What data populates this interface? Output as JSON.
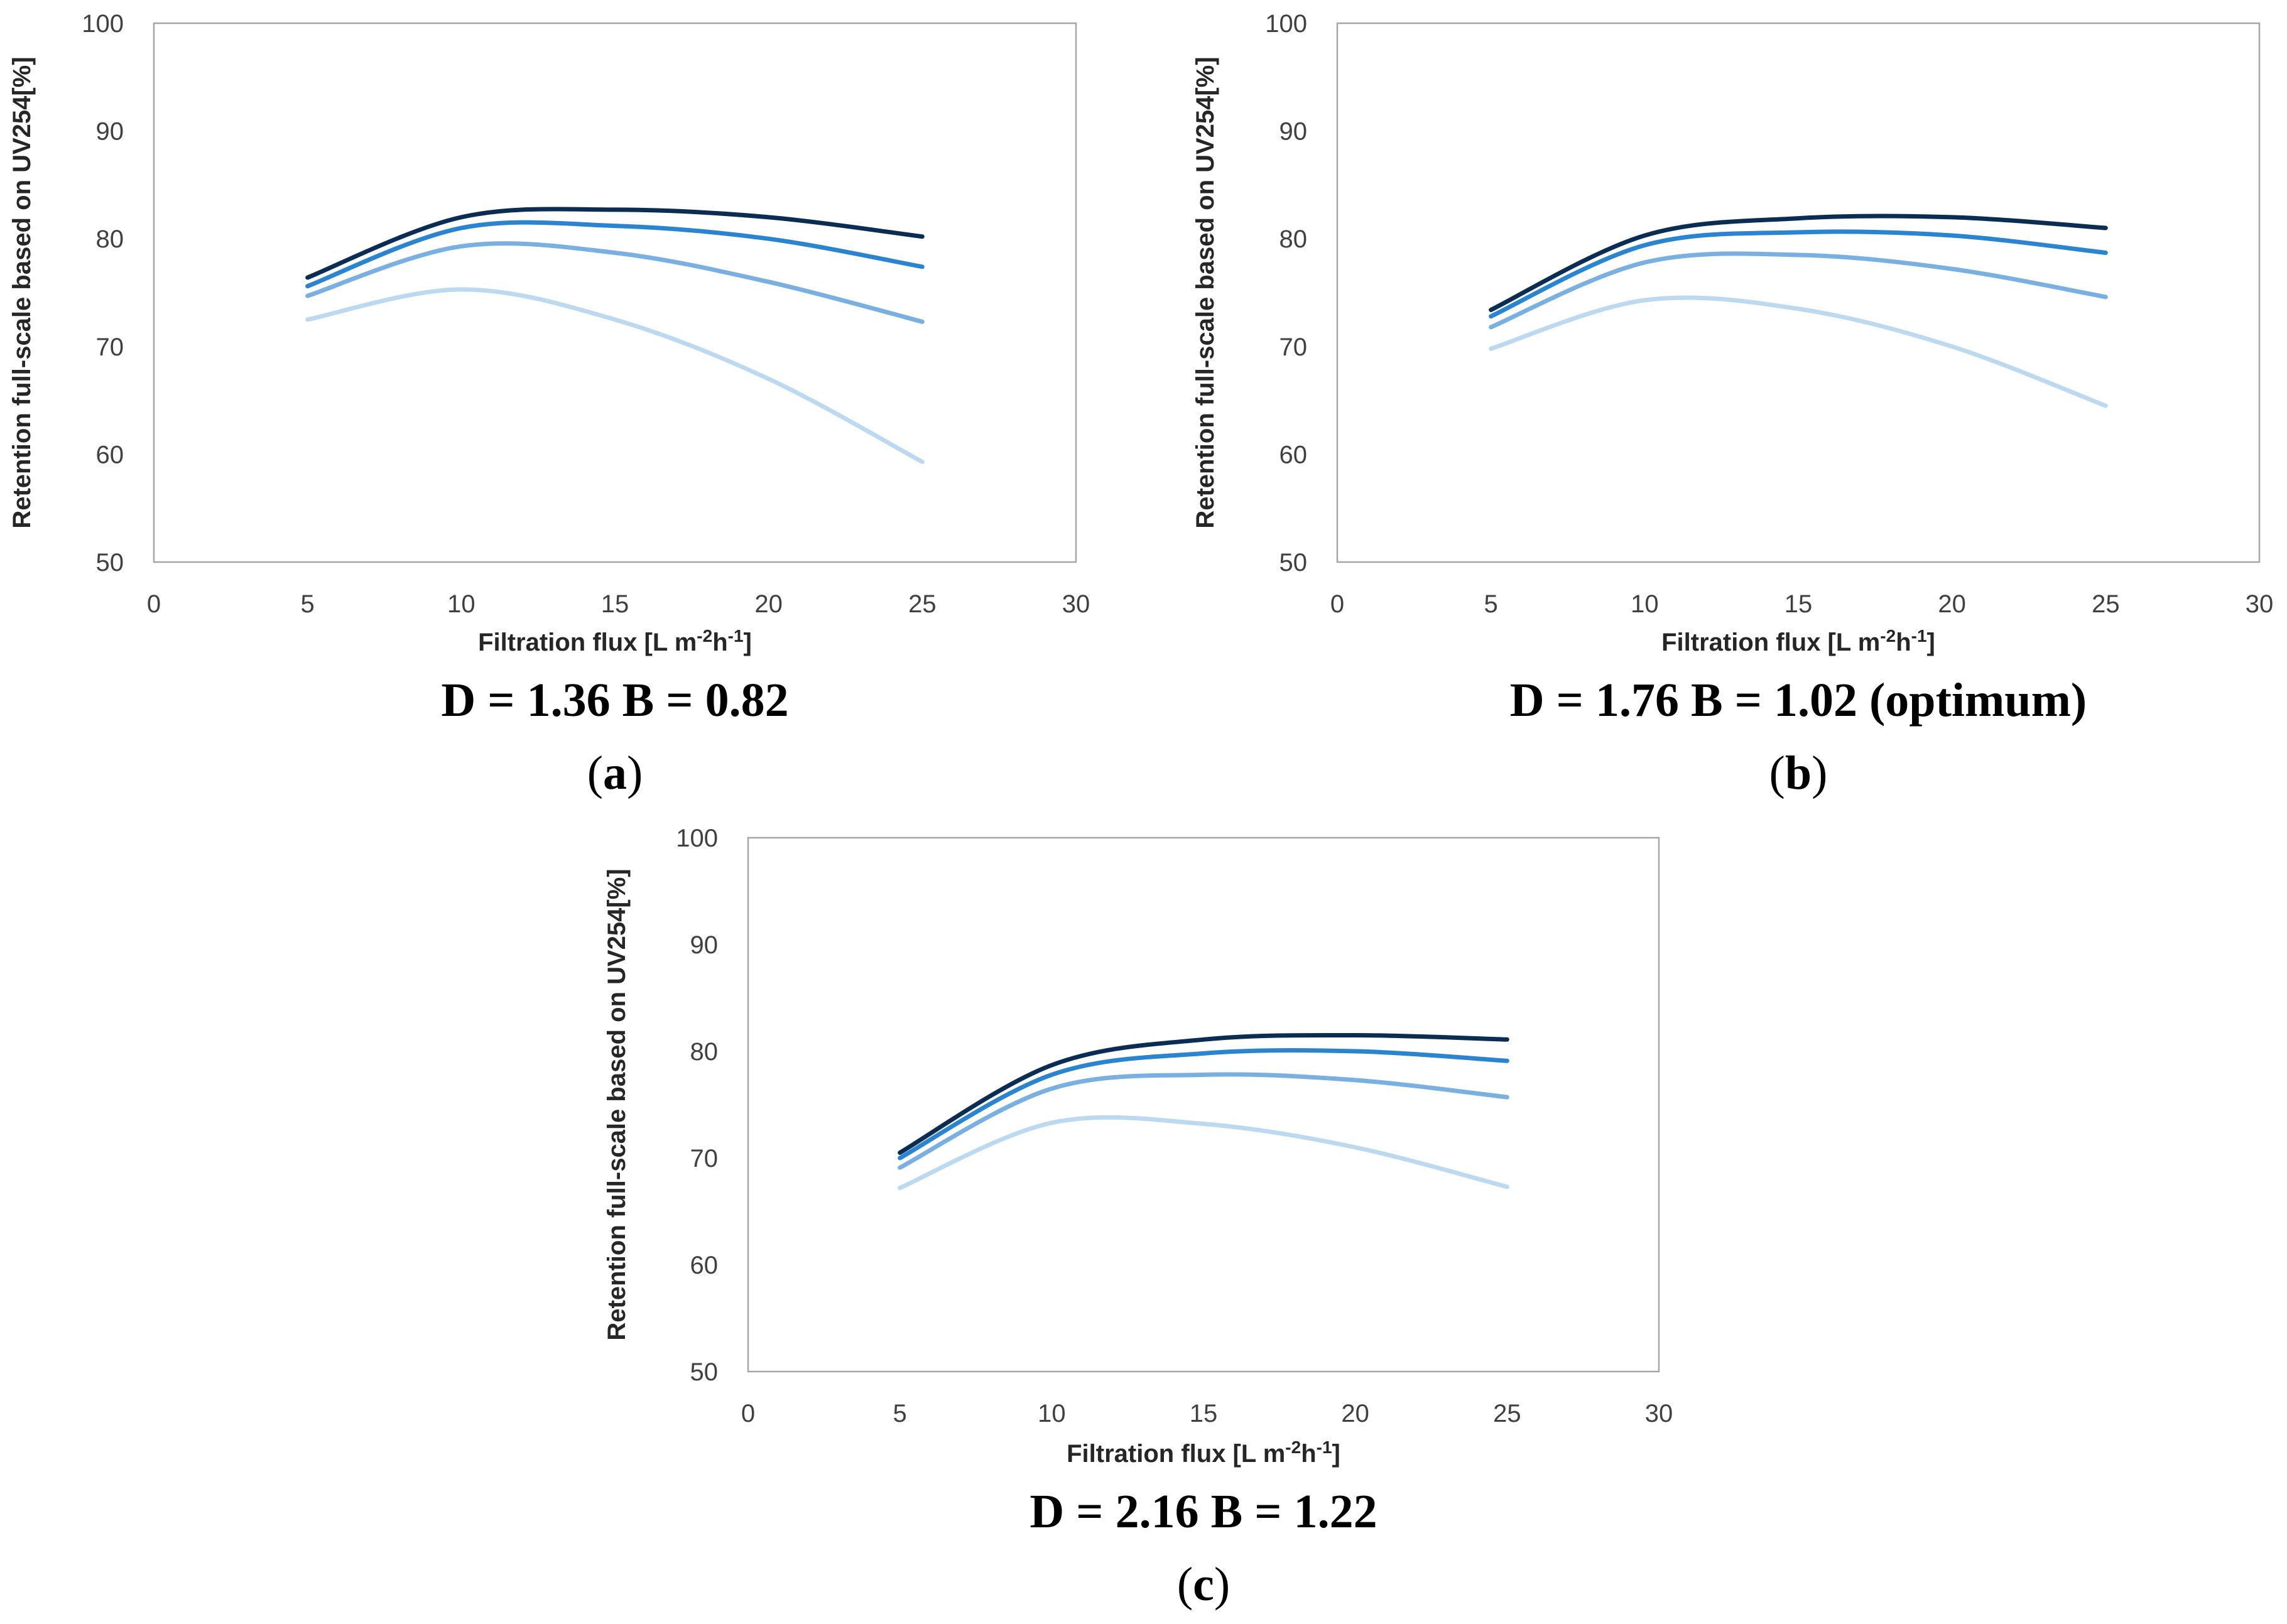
{
  "figure": {
    "colors": {
      "series": [
        "#0b2d54",
        "#2a84cf",
        "#79b0e1",
        "#bcd9f0"
      ],
      "frame": "#a6a6a6",
      "text": "#404040"
    }
  },
  "chart_data": [
    {
      "type": "line",
      "panel_id": "a",
      "caption": "D = 1.36 B = 0.82",
      "label_open": "(",
      "label_letter": "a",
      "label_close": ")",
      "xlabel_main": "Filtration flux [L m",
      "xlabel_sup1": "-2",
      "xlabel_mid": "h",
      "xlabel_sup2": "-1",
      "xlabel_end": "]",
      "ylabel": "Retention full-scale  based on UV254[%]",
      "xlim": [
        0,
        30
      ],
      "ylim": [
        50,
        100
      ],
      "xticks": [
        0,
        5,
        10,
        15,
        20,
        25,
        30
      ],
      "yticks": [
        50,
        60,
        70,
        80,
        90,
        100
      ],
      "x": [
        5,
        10,
        15,
        20,
        25
      ],
      "series": [
        {
          "name": "series-1",
          "values": [
            76.4,
            82.0,
            82.7,
            82.0,
            80.2
          ]
        },
        {
          "name": "series-2",
          "values": [
            75.6,
            81.0,
            81.2,
            80.0,
            77.4
          ]
        },
        {
          "name": "series-3",
          "values": [
            74.7,
            79.3,
            78.7,
            76.0,
            72.3
          ]
        },
        {
          "name": "series-4",
          "values": [
            72.5,
            75.3,
            72.5,
            67.0,
            59.3
          ]
        }
      ]
    },
    {
      "type": "line",
      "panel_id": "b",
      "caption": "D = 1.76 B = 1.02 (optimum)",
      "label_open": "(",
      "label_letter": "b",
      "label_close": ")",
      "xlabel_main": "Filtration flux [L m",
      "xlabel_sup1": "-2",
      "xlabel_mid": "h",
      "xlabel_sup2": "-1",
      "xlabel_end": "]",
      "ylabel": "Retention full-scale  based on UV254[%]",
      "xlim": [
        0,
        30
      ],
      "ylim": [
        50,
        100
      ],
      "xticks": [
        0,
        5,
        10,
        15,
        20,
        25,
        30
      ],
      "yticks": [
        50,
        60,
        70,
        80,
        90,
        100
      ],
      "x": [
        5,
        10,
        15,
        20,
        25
      ],
      "series": [
        {
          "name": "series-1",
          "values": [
            73.4,
            80.3,
            81.9,
            82.0,
            81.0
          ]
        },
        {
          "name": "series-2",
          "values": [
            72.8,
            79.4,
            80.6,
            80.3,
            78.7
          ]
        },
        {
          "name": "series-3",
          "values": [
            71.8,
            77.8,
            78.5,
            77.2,
            74.6
          ]
        },
        {
          "name": "series-4",
          "values": [
            69.8,
            74.3,
            73.5,
            70.0,
            64.5
          ]
        }
      ]
    },
    {
      "type": "line",
      "panel_id": "c",
      "caption": "D = 2.16 B = 1.22",
      "label_open": "(",
      "label_letter": "c",
      "label_close": ")",
      "xlabel_main": "Filtration flux [L m",
      "xlabel_sup1": "-2",
      "xlabel_mid": "h",
      "xlabel_sup2": "-1",
      "xlabel_end": "]",
      "ylabel": "Retention full-scale  based on UV254[%]",
      "xlim": [
        0,
        30
      ],
      "ylim": [
        50,
        100
      ],
      "xticks": [
        0,
        5,
        10,
        15,
        20,
        25,
        30
      ],
      "yticks": [
        50,
        60,
        70,
        80,
        90,
        100
      ],
      "x": [
        5,
        10,
        15,
        20,
        25
      ],
      "series": [
        {
          "name": "series-1",
          "values": [
            70.5,
            78.7,
            81.1,
            81.5,
            81.1
          ]
        },
        {
          "name": "series-2",
          "values": [
            70.0,
            77.8,
            79.8,
            80.0,
            79.1
          ]
        },
        {
          "name": "series-3",
          "values": [
            69.1,
            76.5,
            77.8,
            77.3,
            75.7
          ]
        },
        {
          "name": "series-4",
          "values": [
            67.2,
            73.3,
            73.2,
            71.0,
            67.3
          ]
        }
      ]
    }
  ]
}
